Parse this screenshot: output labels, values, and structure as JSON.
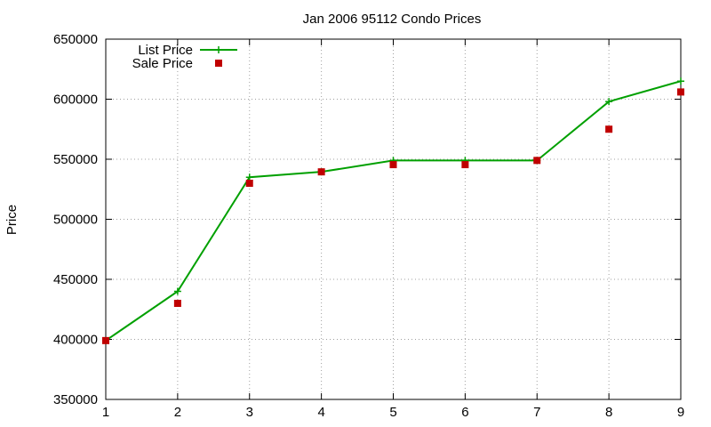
{
  "chart_data": {
    "type": "line",
    "title": "Jan 2006 95112 Condo Prices",
    "xlabel": "",
    "ylabel": "Price",
    "x": [
      1,
      2,
      3,
      4,
      5,
      6,
      7,
      8,
      9
    ],
    "xlim": [
      1,
      9
    ],
    "ylim": [
      350000,
      650000
    ],
    "xticks": [
      "1",
      "2",
      "3",
      "4",
      "5",
      "6",
      "7",
      "8",
      "9"
    ],
    "yticks": [
      "350000",
      "400000",
      "450000",
      "500000",
      "550000",
      "600000",
      "650000"
    ],
    "grid": true,
    "legend_position": "top-left",
    "series": [
      {
        "name": "List Price",
        "style": "line-with-plus-markers",
        "color": "#00a000",
        "values": [
          399000,
          440000,
          535000,
          539500,
          549000,
          549000,
          549000,
          598000,
          615000
        ]
      },
      {
        "name": "Sale Price",
        "style": "square-markers",
        "color": "#c00000",
        "values": [
          399000,
          430000,
          530000,
          539500,
          545500,
          545500,
          549000,
          575000,
          606000
        ]
      }
    ]
  }
}
